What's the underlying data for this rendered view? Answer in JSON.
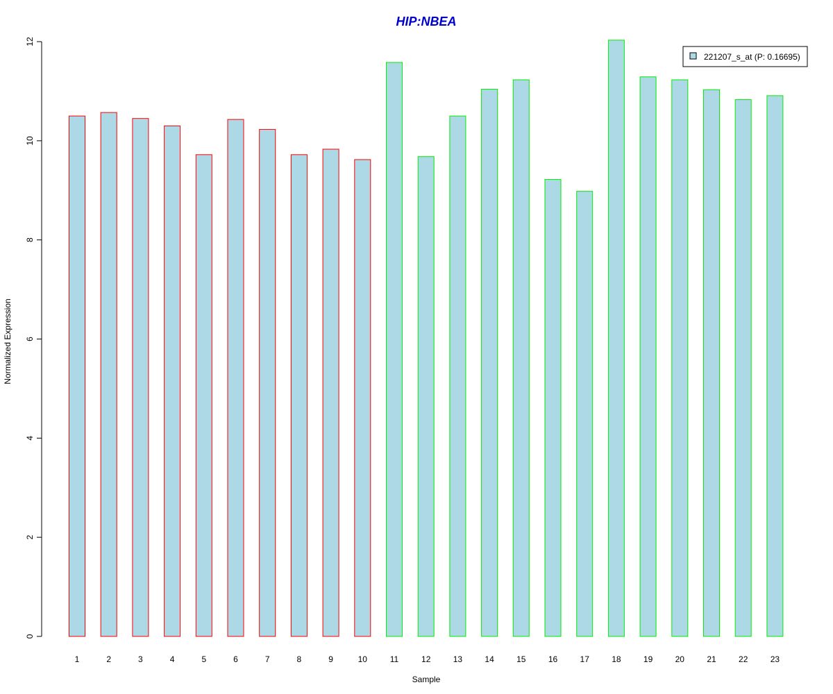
{
  "chart_data": {
    "type": "bar",
    "title": "HIP:NBEA",
    "xlabel": "Sample",
    "ylabel": "Normalized Expression",
    "ylim": [
      0,
      12
    ],
    "yticks": [
      0,
      2,
      4,
      6,
      8,
      10,
      12
    ],
    "grid": false,
    "legend_position": "top-right",
    "categories": [
      "1",
      "2",
      "3",
      "4",
      "5",
      "6",
      "7",
      "8",
      "9",
      "10",
      "11",
      "12",
      "13",
      "14",
      "15",
      "16",
      "17",
      "18",
      "19",
      "20",
      "21",
      "22",
      "23"
    ],
    "series": [
      {
        "name": "221207_s_at (P: 0.16695)",
        "values": [
          10.5,
          10.57,
          10.45,
          10.3,
          9.72,
          10.43,
          10.23,
          9.72,
          9.83,
          9.62,
          11.58,
          9.68,
          10.5,
          11.04,
          11.23,
          9.22,
          8.98,
          12.03,
          11.29,
          11.23,
          11.03,
          10.83,
          10.91
        ],
        "fill_color": "#add8e6",
        "group_colors": [
          "#ff0000",
          "#ff0000",
          "#ff0000",
          "#ff0000",
          "#ff0000",
          "#ff0000",
          "#ff0000",
          "#ff0000",
          "#ff0000",
          "#ff0000",
          "#00ee00",
          "#00ee00",
          "#00ee00",
          "#00ee00",
          "#00ee00",
          "#00ee00",
          "#00ee00",
          "#00ee00",
          "#00ee00",
          "#00ee00",
          "#00ee00",
          "#00ee00",
          "#00ee00"
        ]
      }
    ],
    "title_color": "#0000cc"
  }
}
